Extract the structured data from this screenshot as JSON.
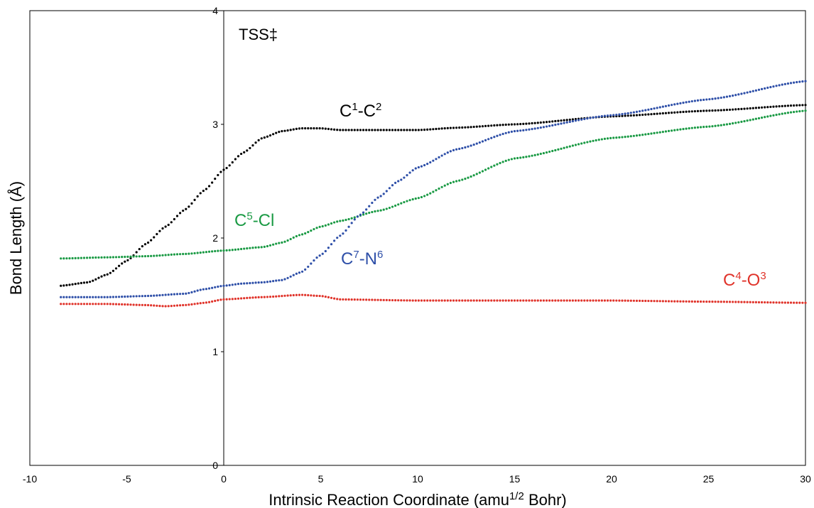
{
  "chart_data": {
    "type": "scatter",
    "xlabel": "Intrinsic Reaction Coordinate (amu1/2 Bohr)",
    "xlabel_parts": {
      "pre": "Intrinsic Reaction Coordinate (amu",
      "sup": "1/2",
      "post": " Bohr)"
    },
    "ylabel": "Bond Length (Å)",
    "xlim": [
      -10,
      30
    ],
    "ylim": [
      0,
      4
    ],
    "x_ticks": [
      "-10",
      "-5",
      "0",
      "5",
      "10",
      "15",
      "20",
      "25",
      "30"
    ],
    "y_ticks": [
      "0",
      "1",
      "2",
      "3",
      "4"
    ],
    "annotation": "TSS‡",
    "series": [
      {
        "name": "C1-C2",
        "label_parts": {
          "a": "C",
          "a_sup": "1",
          "mid": "-C",
          "b_sup": "2"
        },
        "color": "#000000",
        "x": [
          -8.4,
          -7,
          -6,
          -5,
          -4,
          -3,
          -2,
          -1,
          0,
          1,
          2,
          3,
          4,
          5,
          6,
          8,
          10,
          12,
          15,
          20,
          25,
          30
        ],
        "y": [
          1.58,
          1.61,
          1.68,
          1.8,
          1.95,
          2.1,
          2.25,
          2.42,
          2.6,
          2.75,
          2.88,
          2.94,
          2.965,
          2.965,
          2.95,
          2.95,
          2.95,
          2.97,
          3.0,
          3.07,
          3.12,
          3.17
        ]
      },
      {
        "name": "C5-Cl",
        "label_parts": {
          "a": "C",
          "a_sup": "5",
          "mid": "-Cl",
          "b_sup": ""
        },
        "color": "#1a9a44",
        "x": [
          -8.4,
          -6,
          -4,
          -2,
          0,
          2,
          3,
          4,
          5,
          6,
          8,
          10,
          12,
          15,
          20,
          25,
          30
        ],
        "y": [
          1.82,
          1.83,
          1.84,
          1.86,
          1.89,
          1.92,
          1.96,
          2.03,
          2.1,
          2.15,
          2.24,
          2.35,
          2.5,
          2.7,
          2.88,
          2.98,
          3.12
        ]
      },
      {
        "name": "C7-N6",
        "label_parts": {
          "a": "C",
          "a_sup": "7",
          "mid": "-N",
          "b_sup": "6"
        },
        "color": "#2e4fa8",
        "x": [
          -8.4,
          -6,
          -4,
          -2,
          -1,
          0,
          1,
          2,
          3,
          4,
          5,
          6,
          7,
          8,
          9,
          10,
          12,
          15,
          20,
          25,
          30
        ],
        "y": [
          1.48,
          1.48,
          1.49,
          1.51,
          1.55,
          1.58,
          1.6,
          1.61,
          1.63,
          1.7,
          1.85,
          2.02,
          2.2,
          2.36,
          2.5,
          2.62,
          2.78,
          2.94,
          3.08,
          3.22,
          3.38
        ]
      },
      {
        "name": "C4-O3",
        "label_parts": {
          "a": "C",
          "a_sup": "4",
          "mid": "-O",
          "b_sup": "3"
        },
        "color": "#e0332a",
        "x": [
          -8.4,
          -6,
          -4,
          -3,
          -2,
          -1,
          0,
          2,
          4,
          5,
          6,
          10,
          15,
          20,
          25,
          30
        ],
        "y": [
          1.42,
          1.42,
          1.41,
          1.4,
          1.41,
          1.43,
          1.46,
          1.48,
          1.5,
          1.49,
          1.46,
          1.45,
          1.45,
          1.45,
          1.44,
          1.43
        ]
      }
    ]
  }
}
